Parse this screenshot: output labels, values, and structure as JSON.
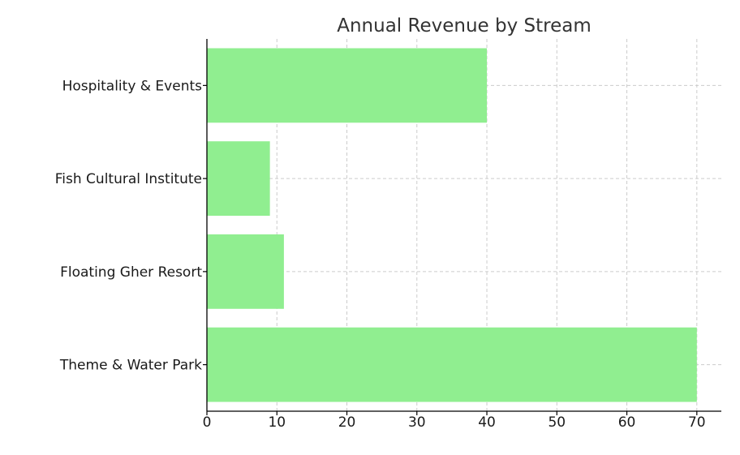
{
  "chart_data": {
    "type": "bar",
    "orientation": "horizontal",
    "title": "Annual Revenue by Stream",
    "xlabel": "",
    "ylabel": "",
    "categories": [
      "Theme & Water Park",
      "Floating Gher Resort",
      "Fish Cultural Institute",
      "Hospitality & Events"
    ],
    "values": [
      70,
      11,
      9,
      40
    ],
    "xlim": [
      0,
      73.5
    ],
    "xticks": [
      0,
      10,
      20,
      30,
      40,
      50,
      60,
      70
    ],
    "grid": true,
    "bar_color": "#90ee90",
    "grid_color": "#cccccc"
  }
}
